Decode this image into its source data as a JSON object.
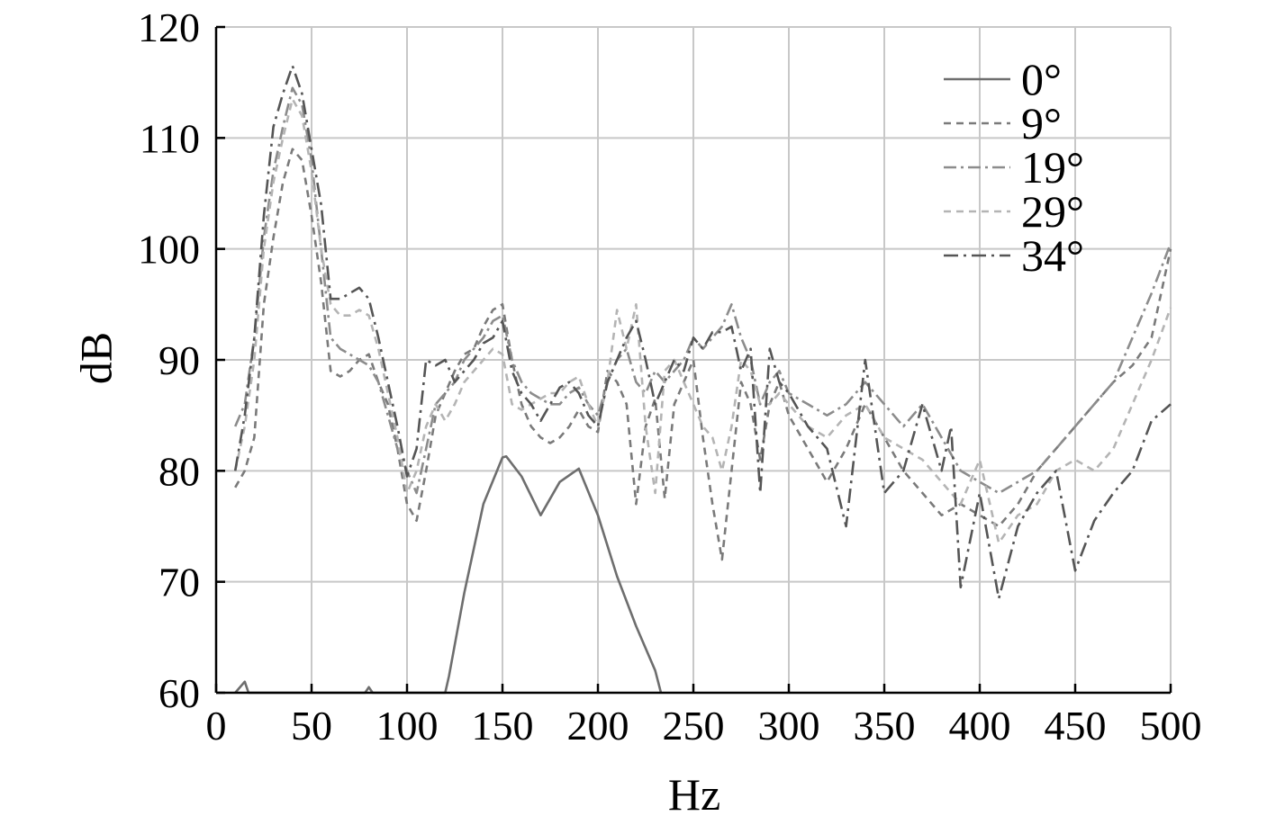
{
  "chart_data": {
    "type": "line",
    "xlabel": "Hz",
    "ylabel": "dB",
    "xlim": [
      0,
      500
    ],
    "ylim": [
      60,
      120
    ],
    "xticks": [
      0,
      50,
      100,
      150,
      200,
      250,
      300,
      350,
      400,
      450,
      500
    ],
    "yticks": [
      60,
      70,
      80,
      90,
      100,
      110,
      120
    ],
    "grid": true,
    "legend_position": "top-right",
    "series": [
      {
        "name": "0°",
        "color": "#6e6e6e",
        "dash": "solid",
        "x": [
          10,
          15,
          17,
          20,
          50,
          78,
          80,
          82,
          100,
          120,
          122,
          130,
          140,
          150,
          152,
          160,
          170,
          180,
          190,
          200,
          210,
          220,
          230,
          233
        ],
        "y": [
          60,
          61,
          60,
          60,
          60,
          60,
          60.5,
          60,
          60,
          60,
          61.5,
          69,
          77,
          81.2,
          81.3,
          79.5,
          76,
          79,
          80.2,
          76,
          70.5,
          66,
          62,
          60
        ]
      },
      {
        "name": "9°",
        "color": "#7a7a7a",
        "dash": "8,6",
        "x": [
          10,
          15,
          20,
          25,
          30,
          35,
          40,
          45,
          50,
          55,
          60,
          65,
          70,
          75,
          80,
          85,
          90,
          95,
          100,
          105,
          110,
          115,
          120,
          125,
          130,
          135,
          140,
          145,
          150,
          155,
          160,
          165,
          170,
          175,
          180,
          185,
          190,
          195,
          200,
          205,
          210,
          215,
          220,
          225,
          230,
          235,
          240,
          245,
          250,
          255,
          260,
          265,
          270,
          275,
          280,
          285,
          290,
          295,
          300,
          310,
          320,
          330,
          340,
          350,
          360,
          370,
          380,
          390,
          400,
          410,
          420,
          430,
          440,
          450,
          460,
          470,
          480,
          490,
          500
        ],
        "y": [
          78.5,
          80,
          83,
          95,
          101,
          106,
          109,
          108,
          103,
          97,
          89,
          88.5,
          89,
          90,
          90.5,
          88,
          86,
          82,
          77,
          75.5,
          80,
          85,
          87,
          89,
          90.5,
          91,
          93,
          94.5,
          95,
          90,
          86,
          84,
          83,
          82.5,
          83,
          84,
          85.5,
          84,
          83.5,
          89,
          88,
          86,
          77,
          84,
          86.5,
          77.5,
          86,
          88,
          90,
          83,
          77,
          72,
          80,
          88,
          86,
          81,
          86,
          88,
          85,
          82,
          79,
          82,
          86,
          83,
          80,
          78,
          76,
          77,
          76,
          75,
          77,
          80,
          82,
          84,
          86,
          88,
          89.5,
          92,
          100
        ]
      },
      {
        "name": "19°",
        "color": "#8c8c8c",
        "dash": "14,5,3,5",
        "x": [
          10,
          15,
          20,
          25,
          30,
          35,
          40,
          45,
          50,
          55,
          60,
          65,
          70,
          75,
          80,
          85,
          90,
          95,
          100,
          105,
          110,
          115,
          120,
          125,
          130,
          135,
          140,
          145,
          150,
          155,
          160,
          165,
          170,
          175,
          180,
          185,
          190,
          195,
          200,
          205,
          210,
          215,
          220,
          225,
          230,
          235,
          240,
          245,
          250,
          255,
          260,
          265,
          270,
          275,
          280,
          285,
          290,
          295,
          300,
          310,
          320,
          330,
          340,
          350,
          360,
          370,
          380,
          390,
          400,
          410,
          420,
          430,
          440,
          450,
          460,
          470,
          480,
          490,
          500
        ],
        "y": [
          84,
          86,
          92,
          101,
          107,
          111,
          114.5,
          113,
          108,
          100,
          92,
          91,
          90.5,
          90,
          89.5,
          88,
          85,
          82,
          80,
          78,
          82,
          86,
          87,
          88,
          90,
          91,
          92,
          93.5,
          94,
          90,
          88,
          87,
          86.5,
          86,
          86,
          87,
          87.5,
          86,
          85,
          88,
          90,
          91,
          88,
          87,
          89,
          88,
          89,
          90,
          92,
          91,
          92,
          93,
          95,
          92,
          90,
          86,
          88,
          89,
          87,
          86,
          85,
          86,
          88,
          86,
          84,
          86,
          83,
          80,
          79,
          78,
          79,
          80,
          82,
          84,
          86,
          88,
          92,
          96,
          100.5
        ]
      },
      {
        "name": "29°",
        "color": "#b4b4b4",
        "dash": "8,6",
        "x": [
          10,
          15,
          20,
          25,
          30,
          35,
          40,
          45,
          50,
          55,
          60,
          65,
          70,
          75,
          80,
          85,
          90,
          95,
          100,
          105,
          110,
          115,
          120,
          125,
          130,
          135,
          140,
          145,
          150,
          155,
          160,
          165,
          170,
          175,
          180,
          185,
          190,
          195,
          200,
          205,
          210,
          215,
          220,
          225,
          230,
          235,
          240,
          245,
          250,
          255,
          260,
          265,
          270,
          275,
          280,
          285,
          290,
          295,
          300,
          310,
          320,
          330,
          340,
          350,
          360,
          370,
          380,
          390,
          400,
          410,
          420,
          430,
          440,
          450,
          460,
          470,
          480,
          490,
          500
        ],
        "y": [
          80,
          84,
          90,
          100,
          106,
          110,
          113.5,
          112,
          107,
          100,
          95,
          94,
          94,
          94.5,
          94,
          91,
          87,
          83,
          78,
          80,
          84,
          86,
          84.5,
          86,
          88,
          89,
          90,
          91,
          90.5,
          86,
          85.5,
          86,
          86.5,
          87,
          87,
          88,
          88.5,
          86,
          84,
          88,
          94.5,
          91,
          95,
          84,
          78,
          89,
          90,
          88,
          86,
          84,
          83,
          80,
          84,
          90,
          89,
          86,
          86,
          87,
          86,
          84,
          83,
          85,
          86,
          83,
          82,
          81,
          79,
          77,
          81,
          73.5,
          76,
          77,
          80,
          81,
          80,
          82,
          86,
          90,
          94.7
        ]
      },
      {
        "name": "34°",
        "color": "#555555",
        "dash": "16,6,3,6",
        "x": [
          10,
          15,
          20,
          25,
          30,
          35,
          40,
          45,
          50,
          55,
          60,
          65,
          70,
          75,
          80,
          85,
          90,
          95,
          100,
          105,
          110,
          115,
          120,
          125,
          130,
          135,
          140,
          145,
          150,
          155,
          160,
          165,
          170,
          175,
          180,
          185,
          190,
          195,
          200,
          205,
          210,
          215,
          220,
          225,
          230,
          235,
          240,
          245,
          250,
          255,
          260,
          265,
          270,
          275,
          280,
          285,
          290,
          295,
          300,
          310,
          320,
          330,
          340,
          350,
          360,
          370,
          380,
          385,
          390,
          400,
          410,
          420,
          430,
          440,
          450,
          460,
          470,
          480,
          490,
          500
        ],
        "y": [
          80,
          85,
          92,
          103,
          111,
          114,
          116.5,
          114,
          109,
          104,
          95.5,
          95.5,
          96,
          96.5,
          95.5,
          92,
          88,
          84,
          79.5,
          82,
          90,
          89.5,
          90,
          88,
          89,
          90,
          91.5,
          92,
          93.5,
          89,
          87,
          86,
          84.5,
          86,
          87.5,
          88,
          87,
          85,
          84,
          88,
          90,
          92,
          93.5,
          90,
          86,
          88,
          90,
          89,
          92,
          91,
          92.5,
          92.5,
          93,
          89,
          91,
          78,
          91,
          88,
          87,
          84,
          82,
          75,
          90,
          78,
          80,
          86,
          80,
          84,
          69.5,
          78,
          68.5,
          75,
          78,
          80,
          71,
          75.5,
          78,
          80,
          84.5,
          86
        ]
      }
    ]
  }
}
